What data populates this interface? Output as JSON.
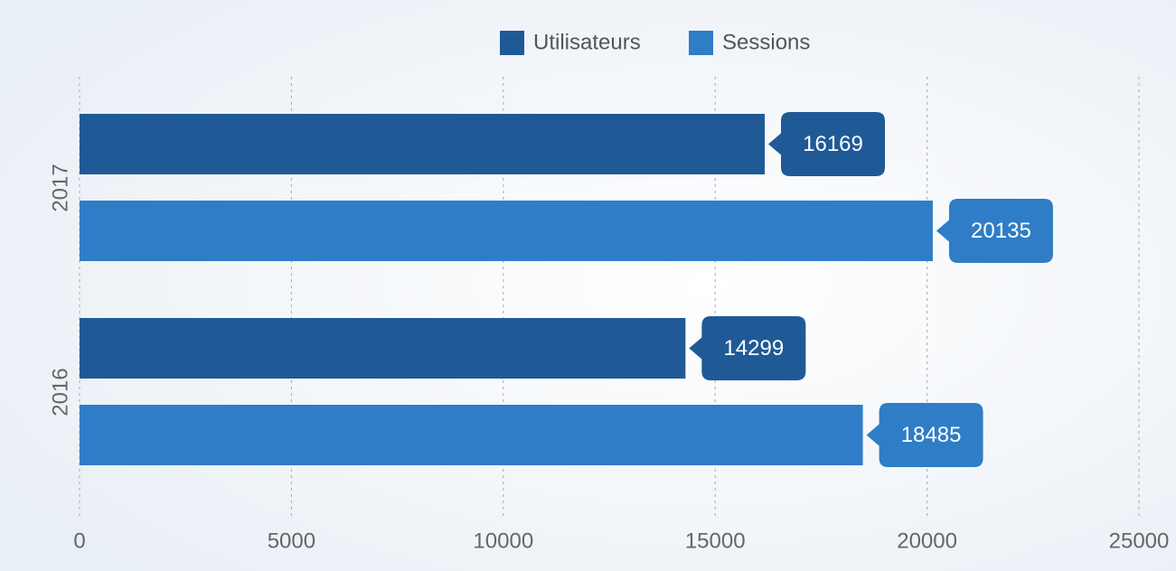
{
  "chart_data": {
    "type": "hbar",
    "categories": [
      "2017",
      "2016"
    ],
    "series": [
      {
        "name": "Utilisateurs",
        "color": "#1f5a96",
        "values": [
          16169,
          14299
        ]
      },
      {
        "name": "Sessions",
        "color": "#2f7dc7",
        "values": [
          20135,
          18485
        ]
      }
    ],
    "xlim": [
      0,
      25000
    ],
    "xticks": [
      0,
      5000,
      10000,
      15000,
      20000,
      25000
    ],
    "grid": true,
    "legend": "top"
  }
}
